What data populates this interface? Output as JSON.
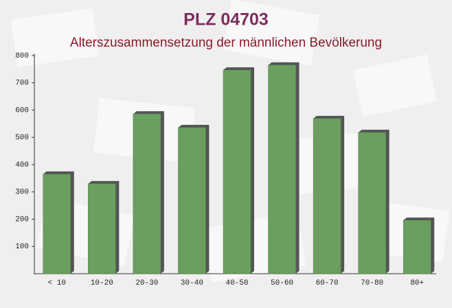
{
  "chart_data": {
    "type": "bar",
    "title": "PLZ 04703",
    "subtitle": "Alterszusammensetzung der männlichen Bevölkerung",
    "categories": [
      "< 10",
      "10-20",
      "20-30",
      "30-40",
      "40-50",
      "50-60",
      "60-70",
      "70-80",
      "80+"
    ],
    "values": [
      365,
      330,
      586,
      536,
      747,
      765,
      569,
      518,
      196
    ],
    "color": "#6a9f5f",
    "ylim": [
      0,
      800
    ],
    "yticks": [
      100,
      200,
      300,
      400,
      500,
      600,
      700,
      800
    ],
    "grid": false
  }
}
